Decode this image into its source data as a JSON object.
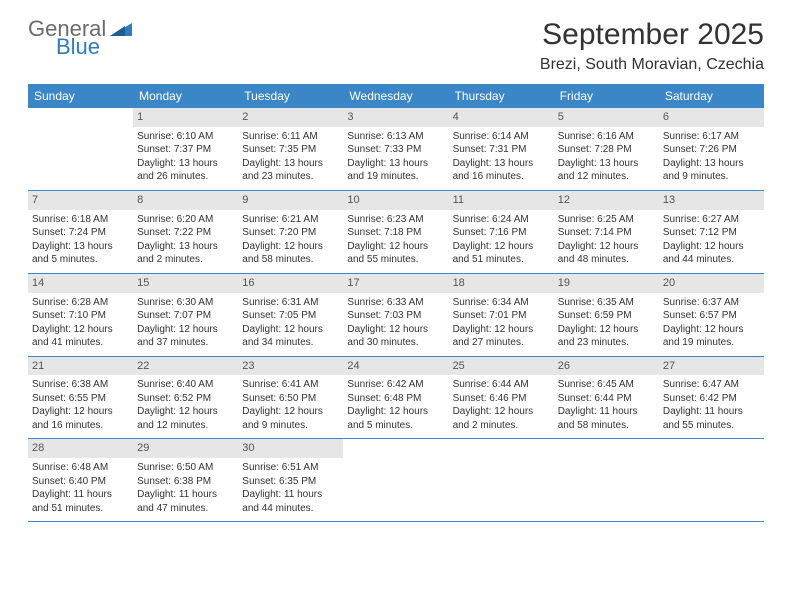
{
  "logo": {
    "text_general": "General",
    "text_blue": "Blue",
    "shape_color": "#2e7bbf"
  },
  "title": "September 2025",
  "location": "Brezi, South Moravian, Czechia",
  "header_bg": "#3b86c6",
  "daybar_bg": "#e6e6e6",
  "day_headers": [
    "Sunday",
    "Monday",
    "Tuesday",
    "Wednesday",
    "Thursday",
    "Friday",
    "Saturday"
  ],
  "weeks": [
    [
      {
        "n": "",
        "sr": "",
        "ss": "",
        "dl": ""
      },
      {
        "n": "1",
        "sr": "Sunrise: 6:10 AM",
        "ss": "Sunset: 7:37 PM",
        "dl": "Daylight: 13 hours and 26 minutes."
      },
      {
        "n": "2",
        "sr": "Sunrise: 6:11 AM",
        "ss": "Sunset: 7:35 PM",
        "dl": "Daylight: 13 hours and 23 minutes."
      },
      {
        "n": "3",
        "sr": "Sunrise: 6:13 AM",
        "ss": "Sunset: 7:33 PM",
        "dl": "Daylight: 13 hours and 19 minutes."
      },
      {
        "n": "4",
        "sr": "Sunrise: 6:14 AM",
        "ss": "Sunset: 7:31 PM",
        "dl": "Daylight: 13 hours and 16 minutes."
      },
      {
        "n": "5",
        "sr": "Sunrise: 6:16 AM",
        "ss": "Sunset: 7:28 PM",
        "dl": "Daylight: 13 hours and 12 minutes."
      },
      {
        "n": "6",
        "sr": "Sunrise: 6:17 AM",
        "ss": "Sunset: 7:26 PM",
        "dl": "Daylight: 13 hours and 9 minutes."
      }
    ],
    [
      {
        "n": "7",
        "sr": "Sunrise: 6:18 AM",
        "ss": "Sunset: 7:24 PM",
        "dl": "Daylight: 13 hours and 5 minutes."
      },
      {
        "n": "8",
        "sr": "Sunrise: 6:20 AM",
        "ss": "Sunset: 7:22 PM",
        "dl": "Daylight: 13 hours and 2 minutes."
      },
      {
        "n": "9",
        "sr": "Sunrise: 6:21 AM",
        "ss": "Sunset: 7:20 PM",
        "dl": "Daylight: 12 hours and 58 minutes."
      },
      {
        "n": "10",
        "sr": "Sunrise: 6:23 AM",
        "ss": "Sunset: 7:18 PM",
        "dl": "Daylight: 12 hours and 55 minutes."
      },
      {
        "n": "11",
        "sr": "Sunrise: 6:24 AM",
        "ss": "Sunset: 7:16 PM",
        "dl": "Daylight: 12 hours and 51 minutes."
      },
      {
        "n": "12",
        "sr": "Sunrise: 6:25 AM",
        "ss": "Sunset: 7:14 PM",
        "dl": "Daylight: 12 hours and 48 minutes."
      },
      {
        "n": "13",
        "sr": "Sunrise: 6:27 AM",
        "ss": "Sunset: 7:12 PM",
        "dl": "Daylight: 12 hours and 44 minutes."
      }
    ],
    [
      {
        "n": "14",
        "sr": "Sunrise: 6:28 AM",
        "ss": "Sunset: 7:10 PM",
        "dl": "Daylight: 12 hours and 41 minutes."
      },
      {
        "n": "15",
        "sr": "Sunrise: 6:30 AM",
        "ss": "Sunset: 7:07 PM",
        "dl": "Daylight: 12 hours and 37 minutes."
      },
      {
        "n": "16",
        "sr": "Sunrise: 6:31 AM",
        "ss": "Sunset: 7:05 PM",
        "dl": "Daylight: 12 hours and 34 minutes."
      },
      {
        "n": "17",
        "sr": "Sunrise: 6:33 AM",
        "ss": "Sunset: 7:03 PM",
        "dl": "Daylight: 12 hours and 30 minutes."
      },
      {
        "n": "18",
        "sr": "Sunrise: 6:34 AM",
        "ss": "Sunset: 7:01 PM",
        "dl": "Daylight: 12 hours and 27 minutes."
      },
      {
        "n": "19",
        "sr": "Sunrise: 6:35 AM",
        "ss": "Sunset: 6:59 PM",
        "dl": "Daylight: 12 hours and 23 minutes."
      },
      {
        "n": "20",
        "sr": "Sunrise: 6:37 AM",
        "ss": "Sunset: 6:57 PM",
        "dl": "Daylight: 12 hours and 19 minutes."
      }
    ],
    [
      {
        "n": "21",
        "sr": "Sunrise: 6:38 AM",
        "ss": "Sunset: 6:55 PM",
        "dl": "Daylight: 12 hours and 16 minutes."
      },
      {
        "n": "22",
        "sr": "Sunrise: 6:40 AM",
        "ss": "Sunset: 6:52 PM",
        "dl": "Daylight: 12 hours and 12 minutes."
      },
      {
        "n": "23",
        "sr": "Sunrise: 6:41 AM",
        "ss": "Sunset: 6:50 PM",
        "dl": "Daylight: 12 hours and 9 minutes."
      },
      {
        "n": "24",
        "sr": "Sunrise: 6:42 AM",
        "ss": "Sunset: 6:48 PM",
        "dl": "Daylight: 12 hours and 5 minutes."
      },
      {
        "n": "25",
        "sr": "Sunrise: 6:44 AM",
        "ss": "Sunset: 6:46 PM",
        "dl": "Daylight: 12 hours and 2 minutes."
      },
      {
        "n": "26",
        "sr": "Sunrise: 6:45 AM",
        "ss": "Sunset: 6:44 PM",
        "dl": "Daylight: 11 hours and 58 minutes."
      },
      {
        "n": "27",
        "sr": "Sunrise: 6:47 AM",
        "ss": "Sunset: 6:42 PM",
        "dl": "Daylight: 11 hours and 55 minutes."
      }
    ],
    [
      {
        "n": "28",
        "sr": "Sunrise: 6:48 AM",
        "ss": "Sunset: 6:40 PM",
        "dl": "Daylight: 11 hours and 51 minutes."
      },
      {
        "n": "29",
        "sr": "Sunrise: 6:50 AM",
        "ss": "Sunset: 6:38 PM",
        "dl": "Daylight: 11 hours and 47 minutes."
      },
      {
        "n": "30",
        "sr": "Sunrise: 6:51 AM",
        "ss": "Sunset: 6:35 PM",
        "dl": "Daylight: 11 hours and 44 minutes."
      },
      {
        "n": "",
        "sr": "",
        "ss": "",
        "dl": ""
      },
      {
        "n": "",
        "sr": "",
        "ss": "",
        "dl": ""
      },
      {
        "n": "",
        "sr": "",
        "ss": "",
        "dl": ""
      },
      {
        "n": "",
        "sr": "",
        "ss": "",
        "dl": ""
      }
    ]
  ]
}
